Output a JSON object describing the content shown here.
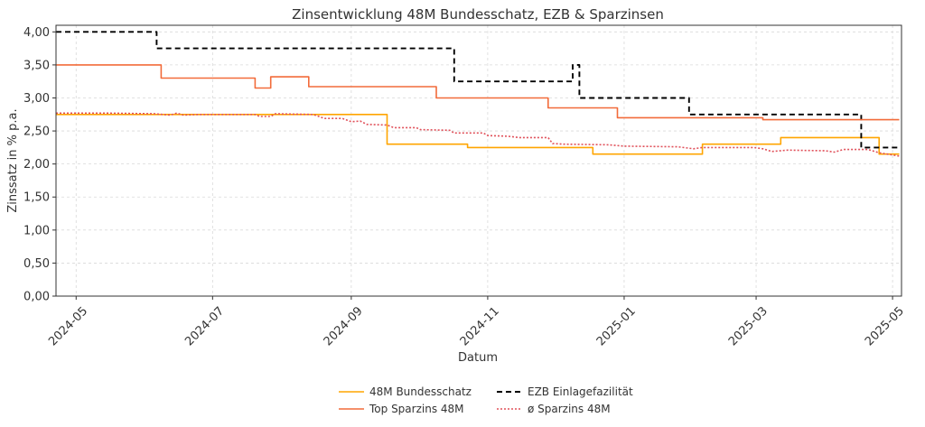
{
  "chart_data": {
    "type": "line",
    "title": "Zinsentwicklung 48M Bundesschatz, EZB & Sparzinsen",
    "xlabel": "Datum",
    "ylabel": "Zinssatz in % p.a.",
    "xlim": [
      "2024-04-22",
      "2025-05-05"
    ],
    "ylim": [
      0,
      4.1
    ],
    "grid": true,
    "legend_position": "bottom-center",
    "y_ticks": [
      "0,00",
      "0,50",
      "1,00",
      "1,50",
      "2,00",
      "2,50",
      "3,00",
      "3,50",
      "4,00"
    ],
    "x_ticks": [
      {
        "date": "2024-05-01",
        "label": "2024-05"
      },
      {
        "date": "2024-07-01",
        "label": "2024-07"
      },
      {
        "date": "2024-09-01",
        "label": "2024-09"
      },
      {
        "date": "2024-11-01",
        "label": "2024-11"
      },
      {
        "date": "2025-01-01",
        "label": "2025-01"
      },
      {
        "date": "2025-03-01",
        "label": "2025-03"
      },
      {
        "date": "2025-05-01",
        "label": "2025-05"
      }
    ],
    "series": [
      {
        "name": "48M Bundesschatz",
        "color": "#FFA500",
        "style": "solid",
        "step": true,
        "points": [
          [
            "2024-04-22",
            2.75
          ],
          [
            "2024-09-17",
            2.75
          ],
          [
            "2024-09-17",
            2.3
          ],
          [
            "2024-10-23",
            2.3
          ],
          [
            "2024-10-23",
            2.25
          ],
          [
            "2024-12-18",
            2.25
          ],
          [
            "2024-12-18",
            2.15
          ],
          [
            "2025-02-05",
            2.15
          ],
          [
            "2025-02-05",
            2.3
          ],
          [
            "2025-03-12",
            2.3
          ],
          [
            "2025-03-12",
            2.4
          ],
          [
            "2025-04-25",
            2.4
          ],
          [
            "2025-04-25",
            2.15
          ],
          [
            "2025-05-04",
            2.15
          ]
        ]
      },
      {
        "name": "EZB Einlagefazilität",
        "color": "#000000",
        "style": "dashed",
        "step": true,
        "points": [
          [
            "2024-04-22",
            4.0
          ],
          [
            "2024-06-06",
            4.0
          ],
          [
            "2024-06-06",
            3.75
          ],
          [
            "2024-10-17",
            3.75
          ],
          [
            "2024-10-17",
            3.25
          ],
          [
            "2024-12-09",
            3.25
          ],
          [
            "2024-12-09",
            3.5
          ],
          [
            "2024-12-12",
            3.5
          ],
          [
            "2024-12-12",
            3.0
          ],
          [
            "2025-01-30",
            3.0
          ],
          [
            "2025-01-30",
            2.75
          ],
          [
            "2025-04-17",
            2.75
          ],
          [
            "2025-04-17",
            2.25
          ],
          [
            "2025-05-04",
            2.25
          ]
        ]
      },
      {
        "name": "Top Sparzins 48M",
        "color": "#F26B3A",
        "style": "solid",
        "step": true,
        "points": [
          [
            "2024-04-22",
            3.5
          ],
          [
            "2024-06-08",
            3.5
          ],
          [
            "2024-06-08",
            3.3
          ],
          [
            "2024-07-20",
            3.3
          ],
          [
            "2024-07-20",
            3.15
          ],
          [
            "2024-07-27",
            3.15
          ],
          [
            "2024-07-27",
            3.32
          ],
          [
            "2024-08-13",
            3.32
          ],
          [
            "2024-08-13",
            3.17
          ],
          [
            "2024-10-09",
            3.17
          ],
          [
            "2024-10-09",
            3.0
          ],
          [
            "2024-11-28",
            3.0
          ],
          [
            "2024-11-28",
            2.85
          ],
          [
            "2024-12-29",
            2.85
          ],
          [
            "2024-12-29",
            2.7
          ],
          [
            "2025-03-04",
            2.7
          ],
          [
            "2025-03-04",
            2.67
          ],
          [
            "2025-05-04",
            2.67
          ]
        ]
      },
      {
        "name": "ø Sparzins 48M",
        "color": "#E0505A",
        "style": "dotted",
        "step": false,
        "points": [
          [
            "2024-04-22",
            2.77
          ],
          [
            "2024-05-15",
            2.77
          ],
          [
            "2024-06-05",
            2.76
          ],
          [
            "2024-06-12",
            2.74
          ],
          [
            "2024-06-15",
            2.77
          ],
          [
            "2024-06-18",
            2.74
          ],
          [
            "2024-06-25",
            2.75
          ],
          [
            "2024-07-20",
            2.75
          ],
          [
            "2024-07-22",
            2.72
          ],
          [
            "2024-07-27",
            2.72
          ],
          [
            "2024-07-29",
            2.76
          ],
          [
            "2024-08-15",
            2.75
          ],
          [
            "2024-08-20",
            2.69
          ],
          [
            "2024-08-28",
            2.69
          ],
          [
            "2024-09-01",
            2.64
          ],
          [
            "2024-09-05",
            2.65
          ],
          [
            "2024-09-08",
            2.6
          ],
          [
            "2024-09-17",
            2.59
          ],
          [
            "2024-09-20",
            2.55
          ],
          [
            "2024-09-30",
            2.55
          ],
          [
            "2024-10-02",
            2.52
          ],
          [
            "2024-10-15",
            2.51
          ],
          [
            "2024-10-17",
            2.47
          ],
          [
            "2024-10-30",
            2.47
          ],
          [
            "2024-11-01",
            2.43
          ],
          [
            "2024-11-10",
            2.42
          ],
          [
            "2024-11-15",
            2.4
          ],
          [
            "2024-11-28",
            2.4
          ],
          [
            "2024-11-30",
            2.31
          ],
          [
            "2024-12-05",
            2.3
          ],
          [
            "2024-12-25",
            2.29
          ],
          [
            "2025-01-01",
            2.27
          ],
          [
            "2025-01-25",
            2.26
          ],
          [
            "2025-02-01",
            2.23
          ],
          [
            "2025-02-05",
            2.25
          ],
          [
            "2025-02-28",
            2.25
          ],
          [
            "2025-03-04",
            2.23
          ],
          [
            "2025-03-08",
            2.19
          ],
          [
            "2025-03-15",
            2.21
          ],
          [
            "2025-04-01",
            2.2
          ],
          [
            "2025-04-05",
            2.18
          ],
          [
            "2025-04-09",
            2.22
          ],
          [
            "2025-04-20",
            2.22
          ],
          [
            "2025-04-25",
            2.17
          ],
          [
            "2025-05-04",
            2.12
          ]
        ]
      }
    ]
  }
}
